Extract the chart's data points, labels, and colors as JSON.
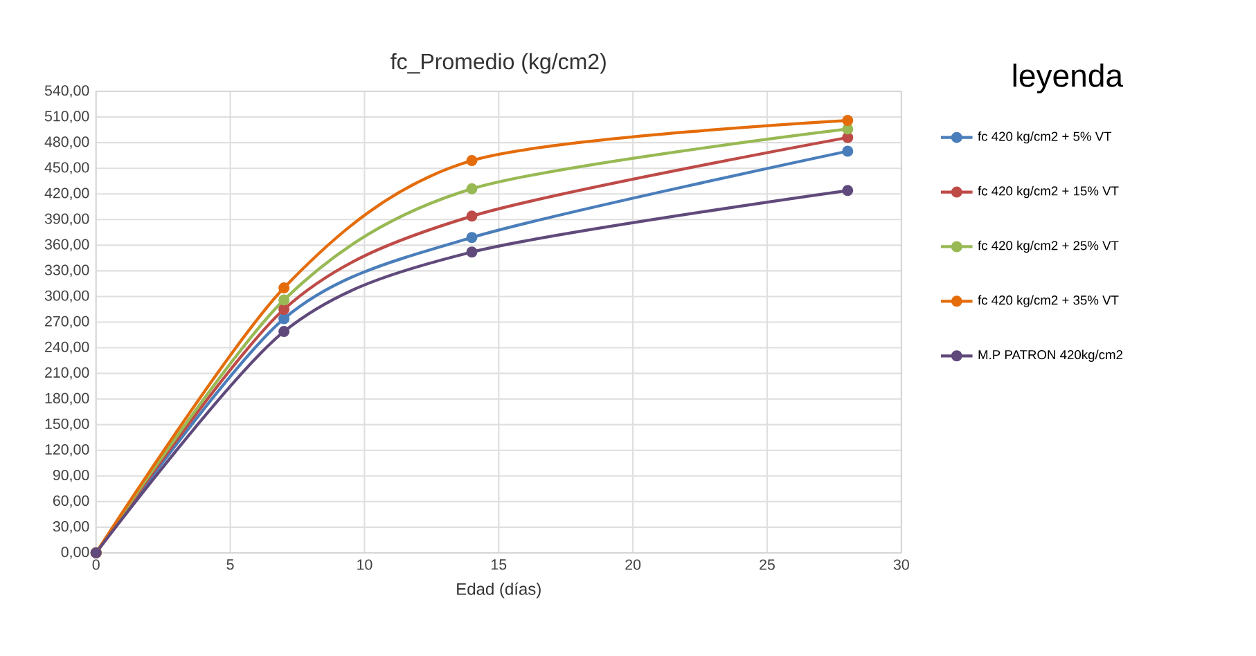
{
  "chart_data": {
    "type": "line",
    "title": "fc_Promedio (kg/cm2)",
    "xlabel": "Edad (días)",
    "legend_title": "leyenda",
    "legend": "right",
    "grid": true,
    "marker": "circle",
    "line_style": "solid",
    "x": [
      0,
      7,
      14,
      28
    ],
    "xlim": [
      0,
      30
    ],
    "xticks": [
      0,
      5,
      10,
      15,
      20,
      25,
      30
    ],
    "ylim": [
      0,
      540
    ],
    "yticks": [
      {
        "value": 0,
        "label": "0,00"
      },
      {
        "value": 30,
        "label": "30,00"
      },
      {
        "value": 60,
        "label": "60,00"
      },
      {
        "value": 90,
        "label": "90,00"
      },
      {
        "value": 120,
        "label": "120,00"
      },
      {
        "value": 150,
        "label": "150,00"
      },
      {
        "value": 180,
        "label": "180,00"
      },
      {
        "value": 210,
        "label": "210,00"
      },
      {
        "value": 240,
        "label": "240,00"
      },
      {
        "value": 270,
        "label": "270,00"
      },
      {
        "value": 300,
        "label": "300,00"
      },
      {
        "value": 330,
        "label": "330,00"
      },
      {
        "value": 360,
        "label": "360,00"
      },
      {
        "value": 390,
        "label": "390,00"
      },
      {
        "value": 420,
        "label": "420,00"
      },
      {
        "value": 450,
        "label": "450,00"
      },
      {
        "value": 480,
        "label": "480,00"
      },
      {
        "value": 510,
        "label": "510,00"
      },
      {
        "value": 540,
        "label": "540,00"
      }
    ],
    "series": [
      {
        "name": "fc 420 kg/cm2 + 5% VT",
        "color": "#4a7ebb",
        "values": [
          0,
          274,
          369,
          470
        ]
      },
      {
        "name": "fc 420 kg/cm2 + 15% VT",
        "color": "#be4b48",
        "values": [
          0,
          285,
          394,
          486
        ]
      },
      {
        "name": "fc 420 kg/cm2 + 25% VT",
        "color": "#98b954",
        "values": [
          0,
          296,
          426,
          496
        ]
      },
      {
        "name": "fc 420 kg/cm2 + 35% VT",
        "color": "#e46c0a",
        "values": [
          0,
          310,
          459,
          506
        ]
      },
      {
        "name": "M.P PATRON 420kg/cm2",
        "color": "#604a7b",
        "values": [
          0,
          259,
          352,
          424
        ]
      }
    ]
  }
}
